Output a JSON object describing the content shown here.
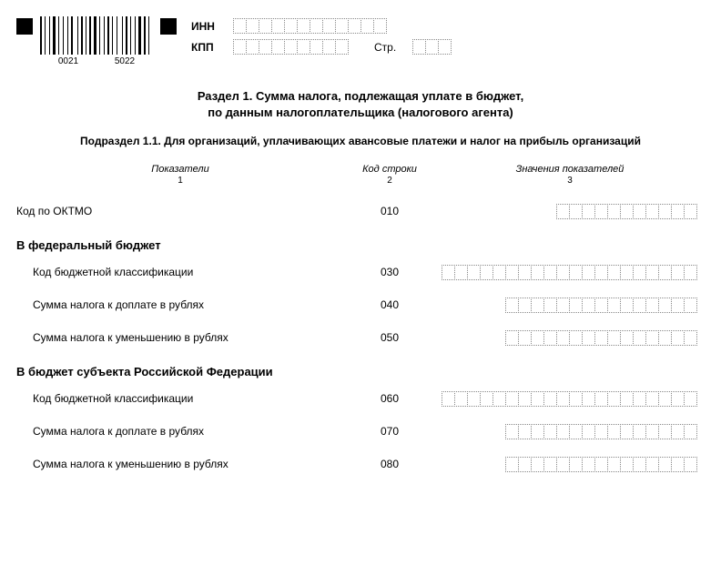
{
  "barcode": {
    "numLeft": "0021",
    "numRight": "5022"
  },
  "header": {
    "innLabel": "ИНН",
    "kppLabel": "КПП",
    "pageLabel": "Стр.",
    "innCells": 12,
    "kppCells": 9,
    "pageCells": 3
  },
  "title": {
    "line1": "Раздел 1. Сумма налога, подлежащая уплате в бюджет,",
    "line2": "по данным налогоплательщика (налогового агента)"
  },
  "subtitle": "Подраздел 1.1. Для организаций, уплачивающих авансовые платежи и налог на прибыль организаций",
  "columns": {
    "h1": "Показатели",
    "s1": "1",
    "h2": "Код строки",
    "s2": "2",
    "h3": "Значения показателей",
    "s3": "3"
  },
  "rows": [
    {
      "label": "Код по ОКТМО",
      "code": "010",
      "cells": 11,
      "indent": 0
    }
  ],
  "group1": {
    "title": "В федеральный бюджет",
    "rows": [
      {
        "label": "Код бюджетной классификации",
        "code": "030",
        "cells": 20
      },
      {
        "label": "Сумма налога к доплате в рублях",
        "code": "040",
        "cells": 15
      },
      {
        "label": "Сумма налога к уменьшению в рублях",
        "code": "050",
        "cells": 15
      }
    ]
  },
  "group2": {
    "title": "В бюджет субъекта Российской Федерации",
    "rows": [
      {
        "label": "Код бюджетной классификации",
        "code": "060",
        "cells": 20
      },
      {
        "label": "Сумма налога к доплате в рублях",
        "code": "070",
        "cells": 15
      },
      {
        "label": "Сумма налога к уменьшению в рублях",
        "code": "080",
        "cells": 15
      }
    ]
  }
}
